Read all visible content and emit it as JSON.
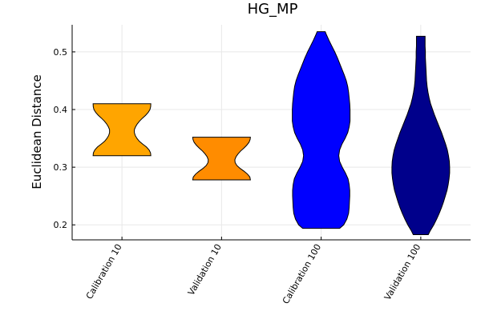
{
  "chart_data": {
    "type": "violin",
    "title": "HG_MP",
    "xlabel": "",
    "ylabel": "Euclidean Distance",
    "ylim": [
      0.174,
      0.547
    ],
    "yticks": [
      0.2,
      0.3,
      0.4,
      0.5
    ],
    "ytick_labels": [
      "0.2",
      "0.3",
      "0.4",
      "0.5"
    ],
    "grid": true,
    "legend": "none",
    "categories": [
      "Calibration 10",
      "Validation 10",
      "Calibration 100",
      "Validation 100"
    ],
    "series": [
      {
        "category": "Calibration 10",
        "color": "#FFA500",
        "min": 0.32,
        "max": 0.41,
        "profile": [
          [
            0.32,
            1.0
          ],
          [
            0.325,
            0.99
          ],
          [
            0.33,
            0.94
          ],
          [
            0.335,
            0.85
          ],
          [
            0.34,
            0.72
          ],
          [
            0.345,
            0.6
          ],
          [
            0.35,
            0.52
          ],
          [
            0.355,
            0.46
          ],
          [
            0.36,
            0.43
          ],
          [
            0.365,
            0.43
          ],
          [
            0.37,
            0.47
          ],
          [
            0.375,
            0.53
          ],
          [
            0.38,
            0.61
          ],
          [
            0.385,
            0.71
          ],
          [
            0.39,
            0.82
          ],
          [
            0.395,
            0.91
          ],
          [
            0.4,
            0.97
          ],
          [
            0.405,
            0.995
          ],
          [
            0.41,
            1.0
          ]
        ]
      },
      {
        "category": "Validation 10",
        "color": "#FF8C00",
        "min": 0.278,
        "max": 0.352,
        "profile": [
          [
            0.278,
            1.0
          ],
          [
            0.283,
            0.98
          ],
          [
            0.288,
            0.9
          ],
          [
            0.293,
            0.78
          ],
          [
            0.298,
            0.64
          ],
          [
            0.303,
            0.53
          ],
          [
            0.308,
            0.47
          ],
          [
            0.313,
            0.46
          ],
          [
            0.318,
            0.5
          ],
          [
            0.323,
            0.57
          ],
          [
            0.328,
            0.66
          ],
          [
            0.333,
            0.77
          ],
          [
            0.338,
            0.87
          ],
          [
            0.343,
            0.95
          ],
          [
            0.348,
            0.99
          ],
          [
            0.352,
            1.0
          ]
        ]
      },
      {
        "category": "Calibration 100",
        "color": "#0000FF",
        "min": 0.194,
        "max": 0.535,
        "profile": [
          [
            0.194,
            0.64
          ],
          [
            0.2,
            0.78
          ],
          [
            0.21,
            0.89
          ],
          [
            0.22,
            0.95
          ],
          [
            0.23,
            0.97
          ],
          [
            0.24,
            0.98
          ],
          [
            0.25,
            0.99
          ],
          [
            0.26,
            0.99
          ],
          [
            0.27,
            0.97
          ],
          [
            0.28,
            0.93
          ],
          [
            0.29,
            0.84
          ],
          [
            0.3,
            0.73
          ],
          [
            0.31,
            0.64
          ],
          [
            0.32,
            0.61
          ],
          [
            0.33,
            0.64
          ],
          [
            0.34,
            0.72
          ],
          [
            0.35,
            0.83
          ],
          [
            0.36,
            0.92
          ],
          [
            0.37,
            0.97
          ],
          [
            0.38,
            1.0
          ],
          [
            0.39,
            1.0
          ],
          [
            0.4,
            1.0
          ],
          [
            0.41,
            0.99
          ],
          [
            0.42,
            0.97
          ],
          [
            0.43,
            0.95
          ],
          [
            0.44,
            0.92
          ],
          [
            0.45,
            0.87
          ],
          [
            0.46,
            0.8
          ],
          [
            0.47,
            0.72
          ],
          [
            0.48,
            0.64
          ],
          [
            0.49,
            0.56
          ],
          [
            0.5,
            0.47
          ],
          [
            0.51,
            0.37
          ],
          [
            0.52,
            0.27
          ],
          [
            0.53,
            0.18
          ],
          [
            0.535,
            0.14
          ]
        ]
      },
      {
        "category": "Validation 100",
        "color": "#00008B",
        "min": 0.183,
        "max": 0.527,
        "profile": [
          [
            0.183,
            0.26
          ],
          [
            0.19,
            0.33
          ],
          [
            0.2,
            0.45
          ],
          [
            0.21,
            0.55
          ],
          [
            0.22,
            0.64
          ],
          [
            0.23,
            0.72
          ],
          [
            0.24,
            0.79
          ],
          [
            0.25,
            0.85
          ],
          [
            0.26,
            0.91
          ],
          [
            0.27,
            0.95
          ],
          [
            0.28,
            0.98
          ],
          [
            0.29,
            1.0
          ],
          [
            0.3,
            1.0
          ],
          [
            0.31,
            0.99
          ],
          [
            0.32,
            0.96
          ],
          [
            0.33,
            0.92
          ],
          [
            0.34,
            0.86
          ],
          [
            0.35,
            0.79
          ],
          [
            0.36,
            0.72
          ],
          [
            0.37,
            0.64
          ],
          [
            0.38,
            0.56
          ],
          [
            0.39,
            0.48
          ],
          [
            0.4,
            0.41
          ],
          [
            0.41,
            0.34
          ],
          [
            0.42,
            0.29
          ],
          [
            0.43,
            0.25
          ],
          [
            0.44,
            0.22
          ],
          [
            0.45,
            0.2
          ],
          [
            0.46,
            0.19
          ],
          [
            0.47,
            0.18
          ],
          [
            0.48,
            0.17
          ],
          [
            0.49,
            0.16
          ],
          [
            0.5,
            0.16
          ],
          [
            0.51,
            0.15
          ],
          [
            0.52,
            0.15
          ],
          [
            0.527,
            0.15
          ]
        ]
      }
    ]
  }
}
